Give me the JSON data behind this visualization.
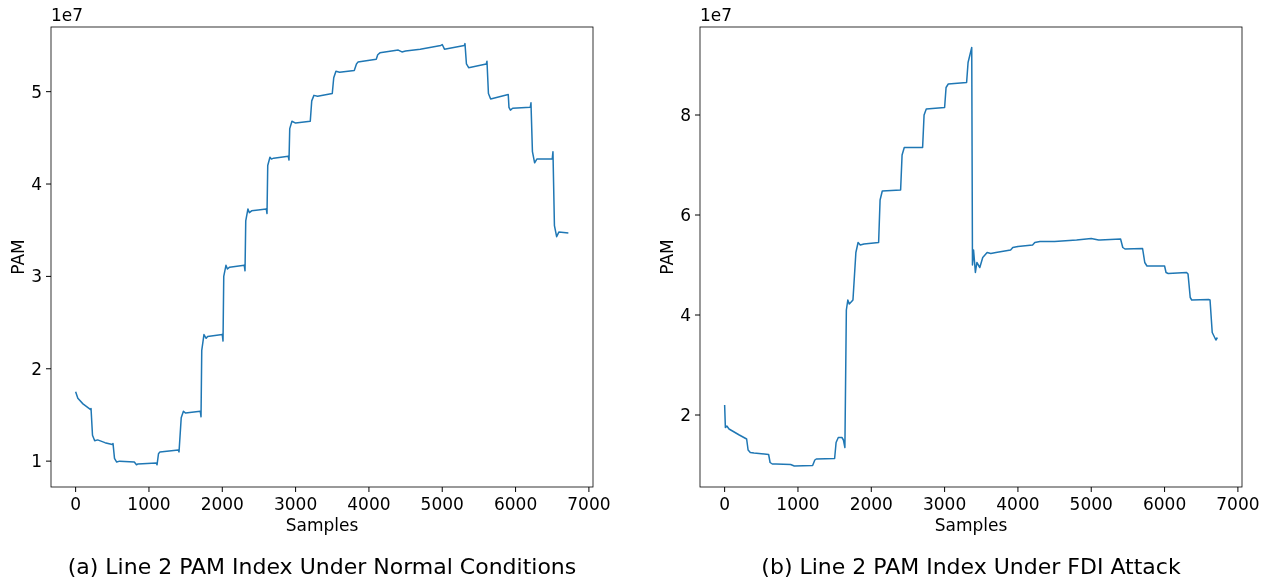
{
  "chart_data": [
    {
      "type": "line",
      "title": "(a) Line 2 PAM Index Under Normal Conditions",
      "xlabel": "Samples",
      "ylabel": "PAM",
      "annotations": [
        "1e7"
      ],
      "xlim": [
        -336,
        7056
      ],
      "ylim": [
        0.72,
        5.7
      ],
      "xticks": [
        0,
        1000,
        2000,
        3000,
        4000,
        5000,
        6000,
        7000
      ],
      "yticks": [
        1,
        2,
        3,
        4,
        5
      ],
      "grid": false,
      "series": [
        {
          "color": "#1f77b4",
          "x": [
            0,
            30,
            100,
            200,
            210,
            230,
            260,
            300,
            400,
            500,
            510,
            530,
            560,
            600,
            800,
            830,
            850,
            1100,
            1110,
            1130,
            1150,
            1400,
            1410,
            1440,
            1470,
            1500,
            1700,
            1710,
            1720,
            1750,
            1780,
            1800,
            2000,
            2010,
            2020,
            2050,
            2070,
            2100,
            2300,
            2310,
            2320,
            2350,
            2370,
            2400,
            2600,
            2610,
            2620,
            2650,
            2670,
            2700,
            2900,
            2910,
            2920,
            2950,
            3000,
            3200,
            3220,
            3250,
            3300,
            3500,
            3520,
            3550,
            3600,
            3800,
            3830,
            3850,
            4100,
            4120,
            4150,
            4400,
            4450,
            4500,
            4700,
            4980,
            5000,
            5030,
            5300,
            5310,
            5330,
            5360,
            5600,
            5610,
            5630,
            5660,
            5900,
            5910,
            5930,
            5960,
            6200,
            6210,
            6230,
            6260,
            6290,
            6500,
            6510,
            6530,
            6560,
            6590,
            6720
          ],
          "values": [
            1.75,
            1.68,
            1.62,
            1.56,
            1.57,
            1.28,
            1.22,
            1.23,
            1.2,
            1.18,
            1.19,
            1.03,
            0.99,
            1.0,
            0.99,
            0.96,
            0.97,
            0.98,
            0.96,
            1.08,
            1.1,
            1.12,
            1.1,
            1.47,
            1.54,
            1.52,
            1.54,
            1.48,
            2.2,
            2.37,
            2.33,
            2.35,
            2.37,
            2.3,
            3.0,
            3.12,
            3.08,
            3.1,
            3.12,
            3.06,
            3.6,
            3.73,
            3.69,
            3.71,
            3.73,
            3.68,
            4.2,
            4.29,
            4.27,
            4.28,
            4.3,
            4.26,
            4.6,
            4.68,
            4.66,
            4.68,
            4.9,
            4.96,
            4.95,
            4.98,
            5.15,
            5.22,
            5.21,
            5.23,
            5.3,
            5.32,
            5.35,
            5.4,
            5.42,
            5.45,
            5.43,
            5.44,
            5.46,
            5.5,
            5.51,
            5.46,
            5.5,
            5.52,
            5.3,
            5.26,
            5.3,
            5.33,
            4.98,
            4.92,
            4.97,
            4.83,
            4.8,
            4.82,
            4.83,
            4.88,
            4.35,
            4.23,
            4.27,
            4.27,
            4.35,
            3.55,
            3.43,
            3.48,
            3.47
          ]
        }
      ]
    },
    {
      "type": "line",
      "title": "(b) Line 2 PAM Index Under FDI Attack",
      "xlabel": "Samples",
      "ylabel": "PAM",
      "annotations": [
        "1e7"
      ],
      "xlim": [
        -336,
        7056
      ],
      "ylim": [
        0.56,
        9.76
      ],
      "xticks": [
        0,
        1000,
        2000,
        3000,
        4000,
        5000,
        6000,
        7000
      ],
      "yticks": [
        2,
        4,
        6,
        8
      ],
      "grid": false,
      "series": [
        {
          "color": "#1f77b4",
          "x": [
            0,
            10,
            30,
            60,
            200,
            300,
            320,
            350,
            400,
            600,
            620,
            650,
            700,
            900,
            950,
            1200,
            1230,
            1250,
            1500,
            1520,
            1550,
            1600,
            1620,
            1640,
            1660,
            1680,
            1700,
            1750,
            1790,
            1820,
            1850,
            1900,
            2100,
            2120,
            2150,
            2400,
            2420,
            2450,
            2700,
            2720,
            2750,
            3000,
            3020,
            3050,
            3300,
            3320,
            3370,
            3380,
            3395,
            3420,
            3440,
            3480,
            3520,
            3580,
            3630,
            3700,
            3900,
            3930,
            4000,
            4200,
            4230,
            4300,
            4500,
            4800,
            5000,
            5100,
            5120,
            5400,
            5430,
            5460,
            5700,
            5730,
            5760,
            6000,
            6020,
            6050,
            6300,
            6320,
            6350,
            6370,
            6600,
            6620,
            6650,
            6700,
            6720
          ],
          "values": [
            2.2,
            1.75,
            1.78,
            1.72,
            1.6,
            1.52,
            1.3,
            1.25,
            1.24,
            1.21,
            1.05,
            1.02,
            1.02,
            1.01,
            0.98,
            0.99,
            1.1,
            1.12,
            1.13,
            1.45,
            1.55,
            1.55,
            1.5,
            1.35,
            4.1,
            4.3,
            4.22,
            4.3,
            5.25,
            5.45,
            5.4,
            5.42,
            5.45,
            6.3,
            6.48,
            6.5,
            7.2,
            7.35,
            7.35,
            8.0,
            8.12,
            8.15,
            8.55,
            8.62,
            8.65,
            9.05,
            9.35,
            5.0,
            5.3,
            4.85,
            5.05,
            4.95,
            5.15,
            5.25,
            5.23,
            5.25,
            5.3,
            5.35,
            5.37,
            5.4,
            5.45,
            5.47,
            5.47,
            5.5,
            5.53,
            5.5,
            5.5,
            5.52,
            5.35,
            5.32,
            5.33,
            5.05,
            4.98,
            4.98,
            4.85,
            4.83,
            4.85,
            4.82,
            4.35,
            4.3,
            4.31,
            4.3,
            3.65,
            3.5,
            3.55
          ]
        }
      ]
    }
  ]
}
